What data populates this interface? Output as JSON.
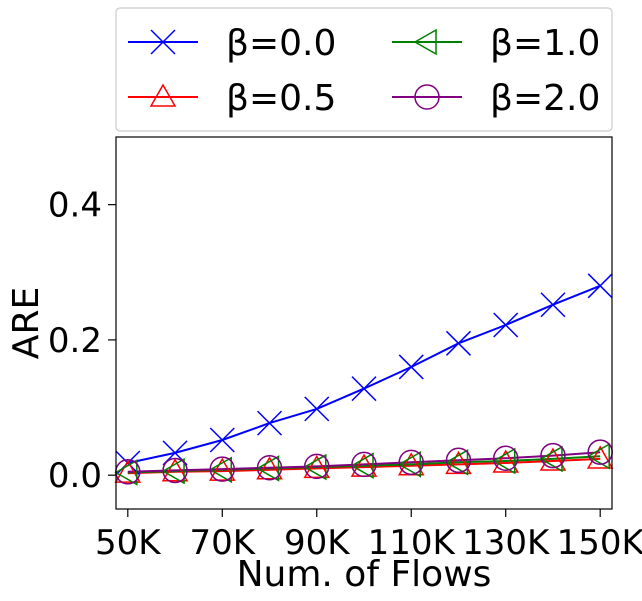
{
  "chart_data": {
    "type": "line",
    "xlabel": "Num. of Flows",
    "ylabel": "ARE",
    "x": [
      50000,
      60000,
      70000,
      80000,
      90000,
      100000,
      110000,
      120000,
      130000,
      140000,
      150000
    ],
    "xticks": [
      50000,
      70000,
      90000,
      110000,
      130000,
      150000
    ],
    "xtick_labels": [
      "50K",
      "70K",
      "90K",
      "110K",
      "130K",
      "150K"
    ],
    "xlim": [
      47500,
      152500
    ],
    "yticks": [
      0.0,
      0.2,
      0.4
    ],
    "ytick_labels": [
      "0.0",
      "0.2",
      "0.4"
    ],
    "ylim": [
      -0.05,
      0.5
    ],
    "grid": false,
    "legend_placement": "above plot, two columns",
    "series": [
      {
        "name": "β=0.0",
        "color": "#0000ff",
        "marker": "x",
        "values": [
          0.018,
          0.033,
          0.052,
          0.077,
          0.098,
          0.128,
          0.16,
          0.195,
          0.222,
          0.252,
          0.28
        ]
      },
      {
        "name": "β=0.5",
        "color": "#ff0000",
        "marker": "triangle-up",
        "values": [
          0.003,
          0.005,
          0.006,
          0.008,
          0.01,
          0.012,
          0.014,
          0.016,
          0.018,
          0.021,
          0.024
        ]
      },
      {
        "name": "β=1.0",
        "color": "#008000",
        "marker": "triangle-left",
        "values": [
          0.004,
          0.006,
          0.008,
          0.01,
          0.012,
          0.014,
          0.016,
          0.019,
          0.021,
          0.024,
          0.028
        ]
      },
      {
        "name": "β=2.0",
        "color": "#800080",
        "marker": "circle",
        "values": [
          0.005,
          0.007,
          0.009,
          0.011,
          0.013,
          0.016,
          0.019,
          0.022,
          0.025,
          0.029,
          0.034
        ]
      }
    ]
  }
}
